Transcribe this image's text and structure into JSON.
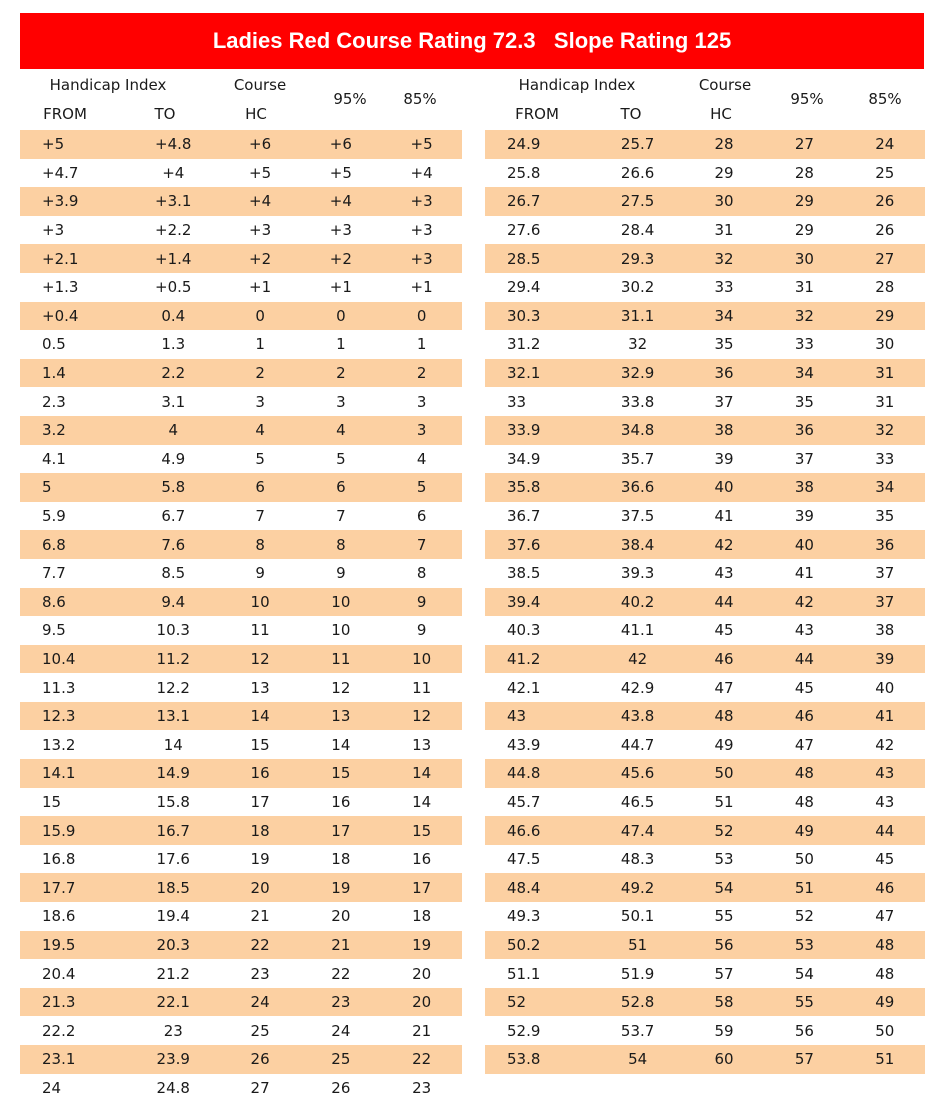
{
  "title": "Ladies Red Course Rating 72.3   Slope Rating 125",
  "headers": {
    "handicap_index": "Handicap Index",
    "from": "FROM",
    "to": "TO",
    "course": "Course",
    "hc": "HC",
    "p95": "95%",
    "p85": "85%"
  },
  "left_rows": [
    [
      "+5",
      "+4.8",
      "+6",
      "+6",
      "+5"
    ],
    [
      "+4.7",
      "+4",
      "+5",
      "+5",
      "+4"
    ],
    [
      "+3.9",
      "+3.1",
      "+4",
      "+4",
      "+3"
    ],
    [
      "+3",
      "+2.2",
      "+3",
      "+3",
      "+3"
    ],
    [
      "+2.1",
      "+1.4",
      "+2",
      "+2",
      "+3"
    ],
    [
      "+1.3",
      "+0.5",
      "+1",
      "+1",
      "+1"
    ],
    [
      "+0.4",
      "0.4",
      "0",
      "0",
      "0"
    ],
    [
      "0.5",
      "1.3",
      "1",
      "1",
      "1"
    ],
    [
      "1.4",
      "2.2",
      "2",
      "2",
      "2"
    ],
    [
      "2.3",
      "3.1",
      "3",
      "3",
      "3"
    ],
    [
      "3.2",
      "4",
      "4",
      "4",
      "3"
    ],
    [
      "4.1",
      "4.9",
      "5",
      "5",
      "4"
    ],
    [
      "5",
      "5.8",
      "6",
      "6",
      "5"
    ],
    [
      "5.9",
      "6.7",
      "7",
      "7",
      "6"
    ],
    [
      "6.8",
      "7.6",
      "8",
      "8",
      "7"
    ],
    [
      "7.7",
      "8.5",
      "9",
      "9",
      "8"
    ],
    [
      "8.6",
      "9.4",
      "10",
      "10",
      "9"
    ],
    [
      "9.5",
      "10.3",
      "11",
      "10",
      "9"
    ],
    [
      "10.4",
      "11.2",
      "12",
      "11",
      "10"
    ],
    [
      "11.3",
      "12.2",
      "13",
      "12",
      "11"
    ],
    [
      "12.3",
      "13.1",
      "14",
      "13",
      "12"
    ],
    [
      "13.2",
      "14",
      "15",
      "14",
      "13"
    ],
    [
      "14.1",
      "14.9",
      "16",
      "15",
      "14"
    ],
    [
      "15",
      "15.8",
      "17",
      "16",
      "14"
    ],
    [
      "15.9",
      "16.7",
      "18",
      "17",
      "15"
    ],
    [
      "16.8",
      "17.6",
      "19",
      "18",
      "16"
    ],
    [
      "17.7",
      "18.5",
      "20",
      "19",
      "17"
    ],
    [
      "18.6",
      "19.4",
      "21",
      "20",
      "18"
    ],
    [
      "19.5",
      "20.3",
      "22",
      "21",
      "19"
    ],
    [
      "20.4",
      "21.2",
      "23",
      "22",
      "20"
    ],
    [
      "21.3",
      "22.1",
      "24",
      "23",
      "20"
    ],
    [
      "22.2",
      "23",
      "25",
      "24",
      "21"
    ],
    [
      "23.1",
      "23.9",
      "26",
      "25",
      "22"
    ],
    [
      "24",
      "24.8",
      "27",
      "26",
      "23"
    ]
  ],
  "right_rows": [
    [
      "24.9",
      "25.7",
      "28",
      "27",
      "24"
    ],
    [
      "25.8",
      "26.6",
      "29",
      "28",
      "25"
    ],
    [
      "26.7",
      "27.5",
      "30",
      "29",
      "26"
    ],
    [
      "27.6",
      "28.4",
      "31",
      "29",
      "26"
    ],
    [
      "28.5",
      "29.3",
      "32",
      "30",
      "27"
    ],
    [
      "29.4",
      "30.2",
      "33",
      "31",
      "28"
    ],
    [
      "30.3",
      "31.1",
      "34",
      "32",
      "29"
    ],
    [
      "31.2",
      "32",
      "35",
      "33",
      "30"
    ],
    [
      "32.1",
      "32.9",
      "36",
      "34",
      "31"
    ],
    [
      "33",
      "33.8",
      "37",
      "35",
      "31"
    ],
    [
      "33.9",
      "34.8",
      "38",
      "36",
      "32"
    ],
    [
      "34.9",
      "35.7",
      "39",
      "37",
      "33"
    ],
    [
      "35.8",
      "36.6",
      "40",
      "38",
      "34"
    ],
    [
      "36.7",
      "37.5",
      "41",
      "39",
      "35"
    ],
    [
      "37.6",
      "38.4",
      "42",
      "40",
      "36"
    ],
    [
      "38.5",
      "39.3",
      "43",
      "41",
      "37"
    ],
    [
      "39.4",
      "40.2",
      "44",
      "42",
      "37"
    ],
    [
      "40.3",
      "41.1",
      "45",
      "43",
      "38"
    ],
    [
      "41.2",
      "42",
      "46",
      "44",
      "39"
    ],
    [
      "42.1",
      "42.9",
      "47",
      "45",
      "40"
    ],
    [
      "43",
      "43.8",
      "48",
      "46",
      "41"
    ],
    [
      "43.9",
      "44.7",
      "49",
      "47",
      "42"
    ],
    [
      "44.8",
      "45.6",
      "50",
      "48",
      "43"
    ],
    [
      "45.7",
      "46.5",
      "51",
      "48",
      "43"
    ],
    [
      "46.6",
      "47.4",
      "52",
      "49",
      "44"
    ],
    [
      "47.5",
      "48.3",
      "53",
      "50",
      "45"
    ],
    [
      "48.4",
      "49.2",
      "54",
      "51",
      "46"
    ],
    [
      "49.3",
      "50.1",
      "55",
      "52",
      "47"
    ],
    [
      "50.2",
      "51",
      "56",
      "53",
      "48"
    ],
    [
      "51.1",
      "51.9",
      "57",
      "54",
      "48"
    ],
    [
      "52",
      "52.8",
      "58",
      "55",
      "49"
    ],
    [
      "52.9",
      "53.7",
      "59",
      "56",
      "50"
    ],
    [
      "53.8",
      "54",
      "60",
      "57",
      "51"
    ]
  ],
  "colors": {
    "title_bg": "#ff0000",
    "row_shade": "#fcd0a2"
  }
}
